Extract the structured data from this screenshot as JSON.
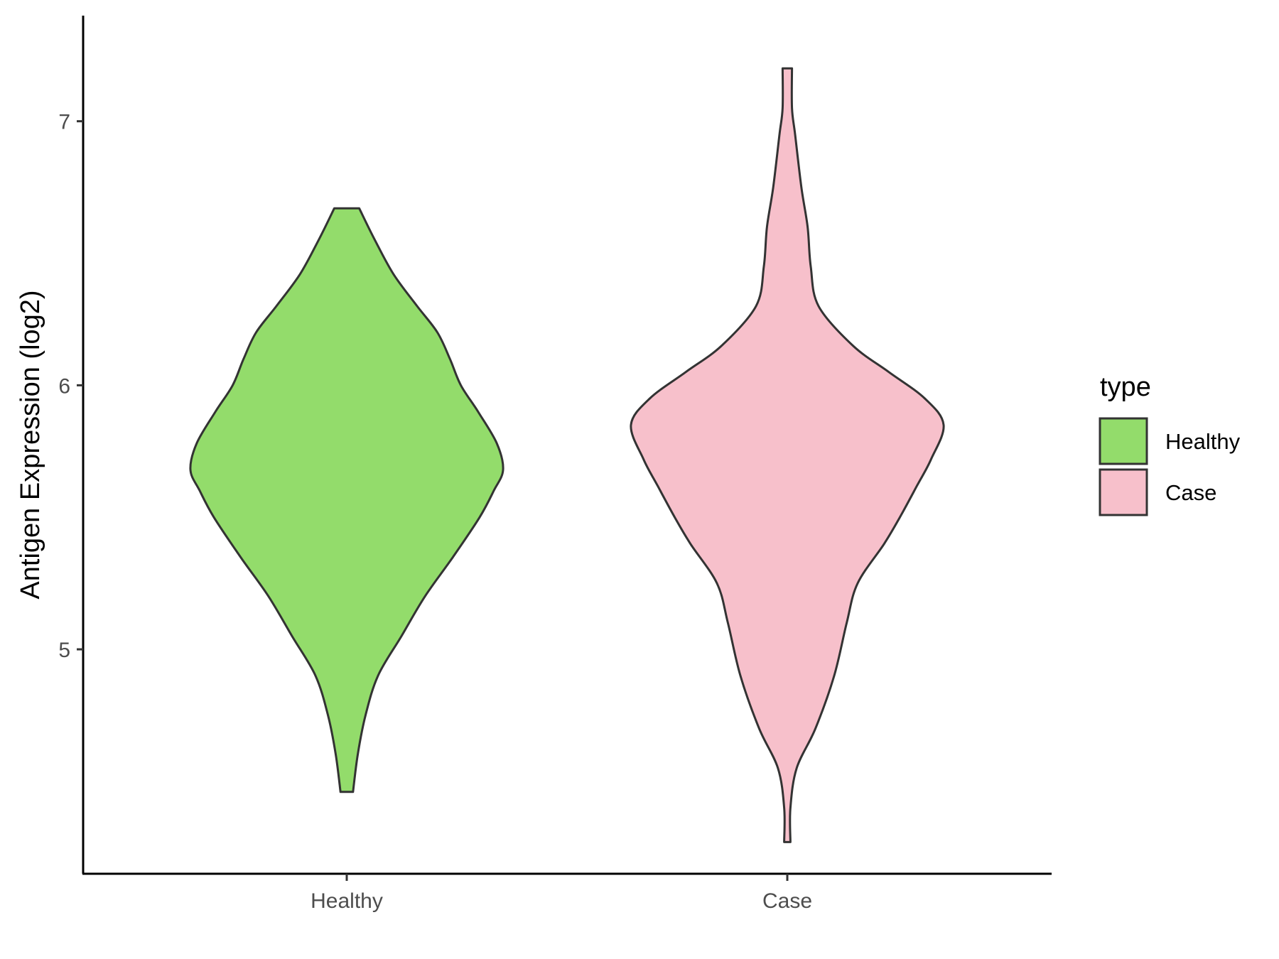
{
  "chart_data": {
    "type": "violin",
    "ylabel": "Antigen Expression (log2)",
    "xlabel": "",
    "categories": [
      "Healthy",
      "Case"
    ],
    "yticks": [
      5,
      6,
      7
    ],
    "ylim": [
      4.15,
      7.4
    ],
    "grid": false,
    "legend": {
      "title": "type",
      "placement": "right",
      "entries": [
        {
          "label": "Healthy",
          "color": "#93DC6B"
        },
        {
          "label": "Case",
          "color": "#F7C0CB"
        }
      ]
    },
    "series": [
      {
        "category": "Healthy",
        "color": "#93DC6B",
        "y_min": 4.46,
        "y_max": 6.67,
        "density_profile": [
          [
            4.46,
            0.04
          ],
          [
            4.6,
            0.07
          ],
          [
            4.75,
            0.12
          ],
          [
            4.9,
            0.2
          ],
          [
            5.05,
            0.35
          ],
          [
            5.2,
            0.5
          ],
          [
            5.35,
            0.68
          ],
          [
            5.5,
            0.85
          ],
          [
            5.6,
            0.94
          ],
          [
            5.68,
            1.0
          ],
          [
            5.78,
            0.96
          ],
          [
            5.9,
            0.84
          ],
          [
            6.0,
            0.73
          ],
          [
            6.1,
            0.66
          ],
          [
            6.2,
            0.58
          ],
          [
            6.3,
            0.45
          ],
          [
            6.42,
            0.3
          ],
          [
            6.55,
            0.18
          ],
          [
            6.67,
            0.08
          ]
        ]
      },
      {
        "category": "Case",
        "color": "#F7C0CB",
        "y_min": 4.27,
        "y_max": 7.2,
        "density_profile": [
          [
            4.27,
            0.02
          ],
          [
            4.4,
            0.02
          ],
          [
            4.55,
            0.06
          ],
          [
            4.7,
            0.18
          ],
          [
            4.9,
            0.3
          ],
          [
            5.1,
            0.38
          ],
          [
            5.25,
            0.45
          ],
          [
            5.4,
            0.62
          ],
          [
            5.5,
            0.72
          ],
          [
            5.62,
            0.83
          ],
          [
            5.72,
            0.92
          ],
          [
            5.85,
            1.0
          ],
          [
            5.95,
            0.88
          ],
          [
            6.05,
            0.65
          ],
          [
            6.15,
            0.42
          ],
          [
            6.3,
            0.2
          ],
          [
            6.45,
            0.15
          ],
          [
            6.6,
            0.13
          ],
          [
            6.75,
            0.09
          ],
          [
            6.95,
            0.05
          ],
          [
            7.05,
            0.03
          ],
          [
            7.2,
            0.03
          ]
        ]
      }
    ]
  }
}
